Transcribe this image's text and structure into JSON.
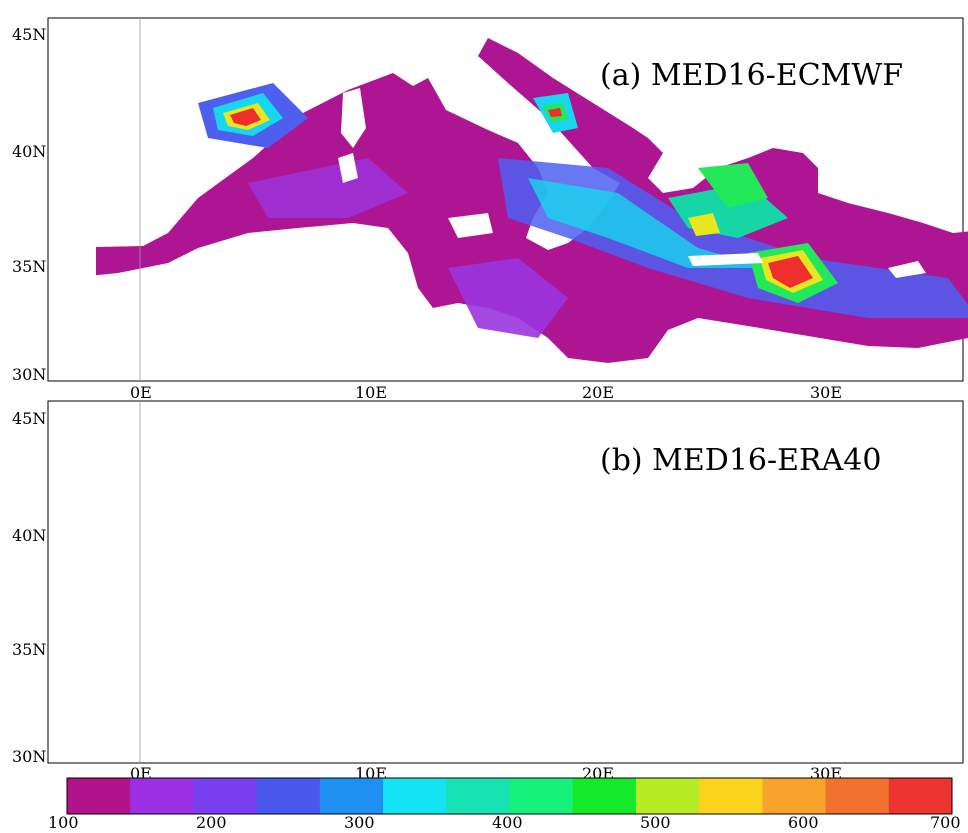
{
  "panels": [
    {
      "title": "(a) MED16-ECMWF",
      "lat_labels": [
        "45N",
        "40N",
        "35N",
        "30N"
      ],
      "lon_labels": [
        "0E",
        "10E",
        "20E",
        "30E"
      ]
    },
    {
      "title": "(b) MED16-ERA40",
      "lat_labels": [
        "45N",
        "40N",
        "35N",
        "30N"
      ],
      "lon_labels": [
        "0E",
        "10E",
        "20E",
        "30E"
      ]
    }
  ],
  "colorbar": {
    "colors": [
      "#b0138c",
      "#9d2fe3",
      "#7a3fef",
      "#4a58ee",
      "#1f8ff1",
      "#14e3f4",
      "#16e2b3",
      "#17f07a",
      "#16e82a",
      "#b6ec26",
      "#fbd21d",
      "#f8a32b",
      "#f1712f",
      "#ec3431"
    ],
    "tick_labels": [
      "100",
      "200",
      "300",
      "400",
      "500",
      "600",
      "700"
    ]
  },
  "map_colors": {
    "water": "#ad1592",
    "low": "#9a34df",
    "mid": "#4e5ff0",
    "cyan": "#18d6ee",
    "teal": "#17d6a6",
    "green": "#22e85a",
    "yellow": "#e8e61f",
    "red": "#ef2f2e",
    "land": "#ffffff"
  }
}
